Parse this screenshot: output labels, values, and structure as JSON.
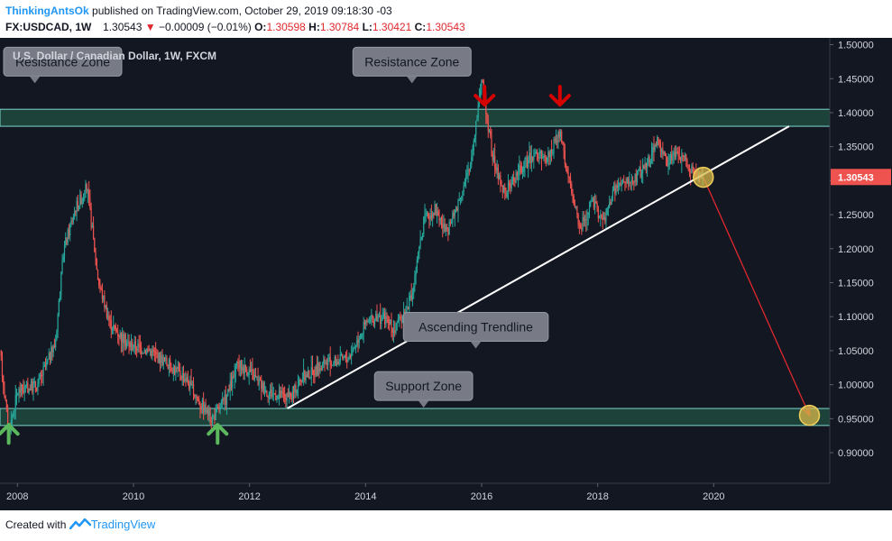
{
  "header": {
    "author": "ThinkingAntsOk",
    "published": "published on TradingView.com, October 29, 2019 09:18:30 -03",
    "symbol": "FX:USDCAD, 1W",
    "last": "1.30543",
    "change_arrow": "▼",
    "change": "−0.00009 (−0.01%)",
    "o_label": "O:",
    "o_value": "1.30598",
    "h_label": "H:",
    "h_value": "1.30784",
    "l_label": "L:",
    "l_value": "1.30421",
    "c_label": "C:",
    "c_value": "1.30543"
  },
  "footer": {
    "created_with": "Created with",
    "brand": "TradingView",
    "logo_icon": "tradingview-logo-icon"
  },
  "colors": {
    "background": "#131722",
    "up_candle": "#26a69a",
    "down_candle": "#ef5350",
    "zone_fill": "#1e4a3d",
    "zone_border": "#7fd8cf",
    "trendline": "#ffffff",
    "projection": "#e0282e",
    "up_arrow": "#5cb85c",
    "down_arrow": "#d50000",
    "price_badge": "#ef5350",
    "marker": "#d8b94a"
  },
  "chart_data": {
    "type": "candlestick",
    "title": "U.S. Dollar / Canadian Dollar, 1W, FXCM",
    "x_range": [
      2007.7,
      2022.0
    ],
    "ylim": [
      0.855,
      1.51
    ],
    "x_ticks": [
      "2008",
      "2010",
      "2012",
      "2014",
      "2016",
      "2018",
      "2020"
    ],
    "y_ticks": [
      "1.50000",
      "1.45000",
      "1.40000",
      "1.35000",
      "1.30000",
      "1.25000",
      "1.20000",
      "1.15000",
      "1.10000",
      "1.05000",
      "1.00000",
      "0.95000",
      "0.90000"
    ],
    "last_price": "1.30543",
    "price_path": [
      [
        2007.7,
        1.05
      ],
      [
        2007.85,
        0.93
      ],
      [
        2008.0,
        0.99
      ],
      [
        2008.35,
        1.0
      ],
      [
        2008.65,
        1.06
      ],
      [
        2008.8,
        1.2
      ],
      [
        2009.0,
        1.26
      ],
      [
        2009.2,
        1.29
      ],
      [
        2009.4,
        1.15
      ],
      [
        2009.6,
        1.09
      ],
      [
        2009.9,
        1.06
      ],
      [
        2010.3,
        1.05
      ],
      [
        2010.6,
        1.03
      ],
      [
        2010.9,
        1.01
      ],
      [
        2011.1,
        0.98
      ],
      [
        2011.35,
        0.95
      ],
      [
        2011.6,
        0.98
      ],
      [
        2011.8,
        1.03
      ],
      [
        2012.0,
        1.02
      ],
      [
        2012.3,
        0.99
      ],
      [
        2012.7,
        0.98
      ],
      [
        2012.9,
        1.01
      ],
      [
        2013.3,
        1.03
      ],
      [
        2013.7,
        1.04
      ],
      [
        2014.0,
        1.09
      ],
      [
        2014.3,
        1.1
      ],
      [
        2014.5,
        1.08
      ],
      [
        2014.8,
        1.13
      ],
      [
        2015.0,
        1.24
      ],
      [
        2015.2,
        1.26
      ],
      [
        2015.4,
        1.22
      ],
      [
        2015.6,
        1.27
      ],
      [
        2015.8,
        1.32
      ],
      [
        2016.0,
        1.45
      ],
      [
        2016.2,
        1.33
      ],
      [
        2016.4,
        1.28
      ],
      [
        2016.6,
        1.31
      ],
      [
        2016.9,
        1.34
      ],
      [
        2017.1,
        1.33
      ],
      [
        2017.35,
        1.37
      ],
      [
        2017.5,
        1.3
      ],
      [
        2017.7,
        1.23
      ],
      [
        2017.9,
        1.27
      ],
      [
        2018.1,
        1.24
      ],
      [
        2018.3,
        1.29
      ],
      [
        2018.6,
        1.3
      ],
      [
        2018.9,
        1.33
      ],
      [
        2019.0,
        1.36
      ],
      [
        2019.2,
        1.33
      ],
      [
        2019.4,
        1.34
      ],
      [
        2019.6,
        1.32
      ],
      [
        2019.82,
        1.305
      ]
    ],
    "resistance_zone": [
      1.38,
      1.405
    ],
    "support_zone": [
      0.94,
      0.965
    ],
    "trendline": {
      "start": [
        2012.65,
        0.965
      ],
      "end": [
        2021.3,
        1.38
      ]
    },
    "projection": {
      "start": [
        2019.82,
        1.305
      ],
      "end": [
        2021.65,
        0.955
      ]
    },
    "up_arrows": [
      [
        2007.85,
        0.925
      ],
      [
        2011.45,
        0.925
      ]
    ],
    "down_arrows": [
      [
        2016.05,
        1.425
      ],
      [
        2017.35,
        1.425
      ]
    ],
    "circles": [
      [
        2019.82,
        1.305
      ],
      [
        2021.65,
        0.955
      ]
    ],
    "annotations": [
      {
        "text": "Resistance Zone",
        "x": 2008.3,
        "y": 1.475
      },
      {
        "text": "Resistance Zone",
        "x": 2014.8,
        "y": 1.475
      },
      {
        "text": "Ascending Trendline",
        "x": 2015.9,
        "y": 1.085
      },
      {
        "text": "Support Zone",
        "x": 2015.0,
        "y": 0.998
      }
    ]
  }
}
